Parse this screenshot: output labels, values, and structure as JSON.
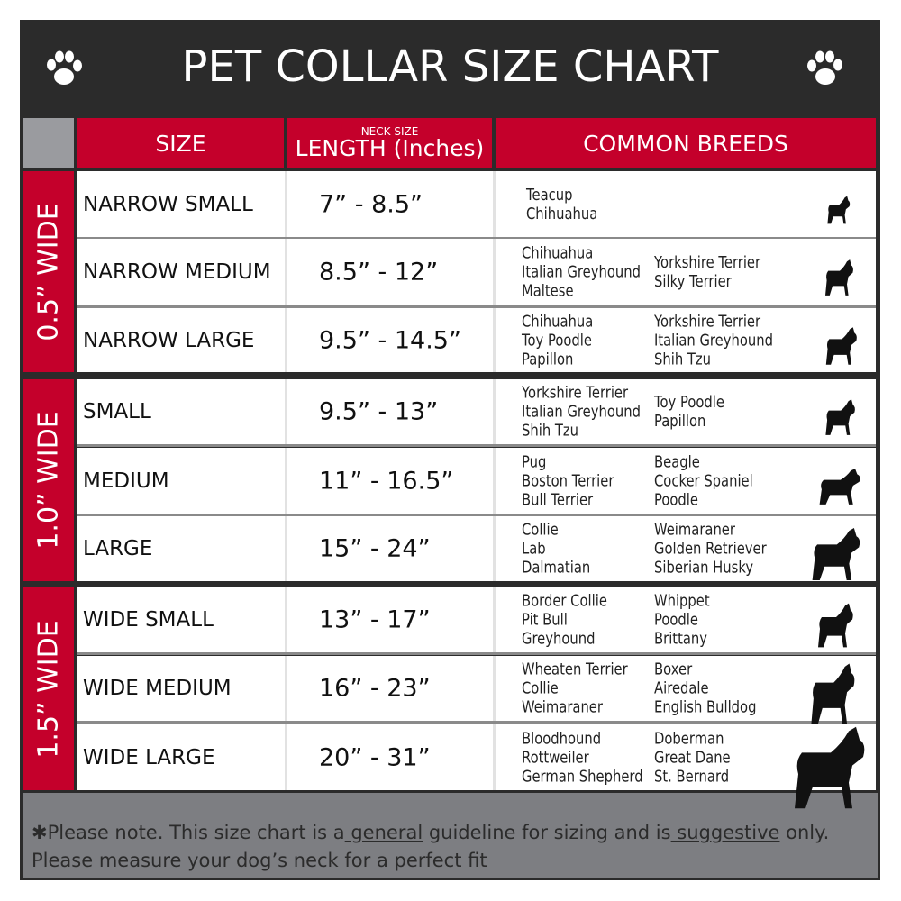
{
  "title": "PET COLLAR SIZE CHART",
  "colors": {
    "accent_red": "#c4002b",
    "dark": "#2b2b2b",
    "footer_gray": "#7d7e82"
  },
  "icons": {
    "title_left": "paw-print-icon",
    "title_right": "paw-print-icon",
    "row_images": "dog-silhouette-icon"
  },
  "headers": {
    "size": "SIZE",
    "length_small": "NECK SIZE",
    "length": "LENGTH (Inches)",
    "breeds": "COMMON BREEDS"
  },
  "groups": [
    {
      "label": "0.5” WIDE"
    },
    {
      "label": "1.0” WIDE"
    },
    {
      "label": "1.5” WIDE"
    }
  ],
  "rows": [
    {
      "size": "NARROW SMALL",
      "length": "7” - 8.5”",
      "breeds_col1": [
        "Teacup",
        "Chihuahua"
      ],
      "breeds_col2": []
    },
    {
      "size": "NARROW MEDIUM",
      "length": "8.5” - 12”",
      "breeds_col1": [
        "Chihuahua",
        "Italian Greyhound",
        "Maltese"
      ],
      "breeds_col2": [
        "Yorkshire Terrier",
        "Silky Terrier"
      ]
    },
    {
      "size": "NARROW LARGE",
      "length": "9.5” - 14.5”",
      "breeds_col1": [
        "Chihuahua",
        "Toy Poodle",
        "Papillon"
      ],
      "breeds_col2": [
        "Yorkshire Terrier",
        "Italian Greyhound",
        "Shih Tzu"
      ]
    },
    {
      "size": "SMALL",
      "length": "9.5” - 13”",
      "breeds_col1": [
        "Yorkshire Terrier",
        "Italian Greyhound",
        "Shih Tzu"
      ],
      "breeds_col2": [
        "Toy Poodle",
        "Papillon"
      ]
    },
    {
      "size": "MEDIUM",
      "length": "11” - 16.5”",
      "breeds_col1": [
        "Pug",
        "Boston Terrier",
        "Bull Terrier"
      ],
      "breeds_col2": [
        "Beagle",
        "Cocker Spaniel",
        "Poodle"
      ]
    },
    {
      "size": "LARGE",
      "length": "15” - 24”",
      "breeds_col1": [
        "Collie",
        "Lab",
        "Dalmatian"
      ],
      "breeds_col2": [
        "Weimaraner",
        "Golden Retriever",
        "Siberian Husky"
      ]
    },
    {
      "size": "WIDE SMALL",
      "length": "13” - 17”",
      "breeds_col1": [
        "Border Collie",
        "Pit Bull",
        "Greyhound"
      ],
      "breeds_col2": [
        "Whippet",
        "Poodle",
        "Brittany"
      ]
    },
    {
      "size": "WIDE MEDIUM",
      "length": "16” - 23”",
      "breeds_col1": [
        "Wheaten Terrier",
        "Collie",
        "Weimaraner"
      ],
      "breeds_col2": [
        "Boxer",
        "Airedale",
        "English Bulldog"
      ]
    },
    {
      "size": "WIDE LARGE",
      "length": "20” - 31”",
      "breeds_col1": [
        "Bloodhound",
        "Rottweiler",
        "German Shepherd"
      ],
      "breeds_col2": [
        "Doberman",
        "Great Dane",
        "St. Bernard"
      ]
    }
  ],
  "footer": {
    "line1_a": "✱Please note. This size chart is a",
    "line1_b": " general",
    "line1_c": " guideline for sizing and is",
    "line1_d": " suggestive",
    "line1_e": " only.",
    "line2": "Please measure your dog’s neck for a perfect fit"
  }
}
